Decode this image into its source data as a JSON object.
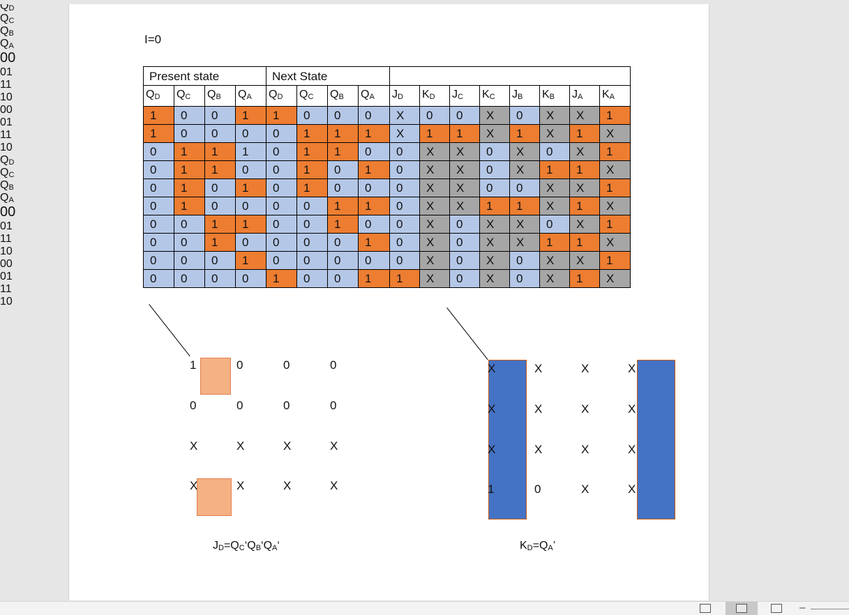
{
  "doc": {
    "condition_label": "I=0",
    "table": {
      "group_headers": [
        "Present state",
        "Next State",
        ""
      ],
      "columns": [
        {
          "base": "Q",
          "sub": "D"
        },
        {
          "base": "Q",
          "sub": "C"
        },
        {
          "base": "Q",
          "sub": "B"
        },
        {
          "base": "Q",
          "sub": "A"
        },
        {
          "base": "Q",
          "sub": "D"
        },
        {
          "base": "Q",
          "sub": "C"
        },
        {
          "base": "Q",
          "sub": "B"
        },
        {
          "base": "Q",
          "sub": "A"
        },
        {
          "base": "J",
          "sub": "D"
        },
        {
          "base": "K",
          "sub": "D"
        },
        {
          "base": "J",
          "sub": "C"
        },
        {
          "base": "K",
          "sub": "C"
        },
        {
          "base": "J",
          "sub": "B"
        },
        {
          "base": "K",
          "sub": "B"
        },
        {
          "base": "J",
          "sub": "A"
        },
        {
          "base": "K",
          "sub": "A"
        }
      ],
      "rows": [
        [
          "1",
          "0",
          "0",
          "1",
          "1",
          "0",
          "0",
          "0",
          "X",
          "0",
          "0",
          "X",
          "0",
          "X",
          "X",
          "1"
        ],
        [
          "1",
          "0",
          "0",
          "0",
          "0",
          "1",
          "1",
          "1",
          "X",
          "1",
          "1",
          "X",
          "1",
          "X",
          "1",
          "X"
        ],
        [
          "0",
          "1",
          "1",
          "1",
          "0",
          "1",
          "1",
          "0",
          "0",
          "X",
          "X",
          "0",
          "X",
          "0",
          "X",
          "1"
        ],
        [
          "0",
          "1",
          "1",
          "0",
          "0",
          "1",
          "0",
          "1",
          "0",
          "X",
          "X",
          "0",
          "X",
          "1",
          "1",
          "X"
        ],
        [
          "0",
          "1",
          "0",
          "1",
          "0",
          "1",
          "0",
          "0",
          "0",
          "X",
          "X",
          "0",
          "0",
          "X",
          "X",
          "1"
        ],
        [
          "0",
          "1",
          "0",
          "0",
          "0",
          "0",
          "1",
          "1",
          "0",
          "X",
          "X",
          "1",
          "1",
          "X",
          "1",
          "X"
        ],
        [
          "0",
          "0",
          "1",
          "1",
          "0",
          "0",
          "1",
          "0",
          "0",
          "X",
          "0",
          "X",
          "X",
          "0",
          "X",
          "1"
        ],
        [
          "0",
          "0",
          "1",
          "0",
          "0",
          "0",
          "0",
          "1",
          "0",
          "X",
          "0",
          "X",
          "X",
          "1",
          "1",
          "X"
        ],
        [
          "0",
          "0",
          "0",
          "1",
          "0",
          "0",
          "0",
          "0",
          "0",
          "X",
          "0",
          "X",
          "0",
          "X",
          "X",
          "1"
        ],
        [
          "0",
          "0",
          "0",
          "0",
          "1",
          "0",
          "0",
          "1",
          "1",
          "X",
          "0",
          "X",
          "0",
          "X",
          "1",
          "X"
        ]
      ],
      "colors": [
        [
          "o",
          "b",
          "b",
          "o",
          "o",
          "b",
          "b",
          "b",
          "b",
          "b",
          "b",
          "g",
          "b",
          "g",
          "g",
          "o"
        ],
        [
          "o",
          "b",
          "b",
          "b",
          "b",
          "o",
          "o",
          "o",
          "b",
          "o",
          "o",
          "g",
          "o",
          "g",
          "o",
          "g"
        ],
        [
          "b",
          "o",
          "o",
          "b",
          "b",
          "o",
          "o",
          "b",
          "b",
          "g",
          "g",
          "b",
          "g",
          "b",
          "g",
          "o"
        ],
        [
          "b",
          "o",
          "o",
          "b",
          "b",
          "o",
          "b",
          "o",
          "b",
          "g",
          "g",
          "b",
          "g",
          "o",
          "o",
          "g"
        ],
        [
          "b",
          "o",
          "b",
          "o",
          "b",
          "o",
          "b",
          "b",
          "b",
          "g",
          "g",
          "b",
          "b",
          "g",
          "g",
          "o"
        ],
        [
          "b",
          "o",
          "b",
          "b",
          "b",
          "b",
          "o",
          "o",
          "b",
          "g",
          "g",
          "o",
          "o",
          "g",
          "o",
          "g"
        ],
        [
          "b",
          "b",
          "o",
          "o",
          "b",
          "b",
          "o",
          "b",
          "b",
          "g",
          "b",
          "g",
          "g",
          "b",
          "g",
          "o"
        ],
        [
          "b",
          "b",
          "o",
          "b",
          "b",
          "b",
          "b",
          "o",
          "b",
          "g",
          "b",
          "g",
          "g",
          "o",
          "o",
          "g"
        ],
        [
          "b",
          "b",
          "b",
          "o",
          "b",
          "b",
          "b",
          "b",
          "b",
          "g",
          "b",
          "g",
          "b",
          "g",
          "g",
          "o"
        ],
        [
          "b",
          "b",
          "b",
          "b",
          "o",
          "b",
          "b",
          "o",
          "o",
          "g",
          "b",
          "g",
          "b",
          "g",
          "o",
          "g"
        ]
      ]
    },
    "kmaps": [
      {
        "id": "jd",
        "row_var_top": {
          "base": "Q",
          "sub": "D"
        },
        "row_var_bottom": {
          "base": "Q",
          "sub": "C"
        },
        "col_var_top": {
          "base": "Q",
          "sub": "B"
        },
        "col_var_bottom": {
          "base": "Q",
          "sub": "A"
        },
        "col_labels": [
          "00",
          "01",
          "11",
          "10"
        ],
        "row_labels": [
          "00",
          "01",
          "11",
          "10"
        ],
        "cells": [
          [
            "1",
            "0",
            "0",
            "0"
          ],
          [
            "0",
            "0",
            "0",
            "0"
          ],
          [
            "X",
            "X",
            "X",
            "X"
          ],
          [
            "X",
            "X",
            "X",
            "X"
          ]
        ],
        "equation": [
          {
            "base": "J",
            "sub": "D"
          },
          {
            "text": "=Q"
          },
          {
            "sub": "C"
          },
          {
            "text": "‘Q"
          },
          {
            "sub": "B"
          },
          {
            "text": "‘Q"
          },
          {
            "sub": "A"
          },
          {
            "text": "‘"
          }
        ],
        "highlight_color": "#f4b183"
      },
      {
        "id": "kd",
        "row_var_top": {
          "base": "Q",
          "sub": "D"
        },
        "row_var_bottom": {
          "base": "Q",
          "sub": "C"
        },
        "col_var_top": {
          "base": "Q",
          "sub": "B"
        },
        "col_var_bottom": {
          "base": "Q",
          "sub": "A"
        },
        "col_labels": [
          "00",
          "01",
          "11",
          "10"
        ],
        "row_labels": [
          "00",
          "01",
          "11",
          "10"
        ],
        "cells": [
          [
            "X",
            "X",
            "X",
            "X"
          ],
          [
            "X",
            "X",
            "X",
            "X"
          ],
          [
            "X",
            "X",
            "X",
            "X"
          ],
          [
            "1",
            "0",
            "X",
            "X"
          ]
        ],
        "equation": [
          {
            "base": "K",
            "sub": "D"
          },
          {
            "text": "=Q"
          },
          {
            "sub": "A"
          },
          {
            "text": "’"
          }
        ],
        "highlight_color": "#4472c4"
      }
    ],
    "palette": {
      "orange": "#ed7d31",
      "blue": "#b4c7e7",
      "gray": "#a6a6a6"
    }
  },
  "statusbar": {
    "icons": [
      "print-layout-icon",
      "read-mode-icon",
      "web-layout-icon"
    ],
    "zoom_minus": "–"
  }
}
